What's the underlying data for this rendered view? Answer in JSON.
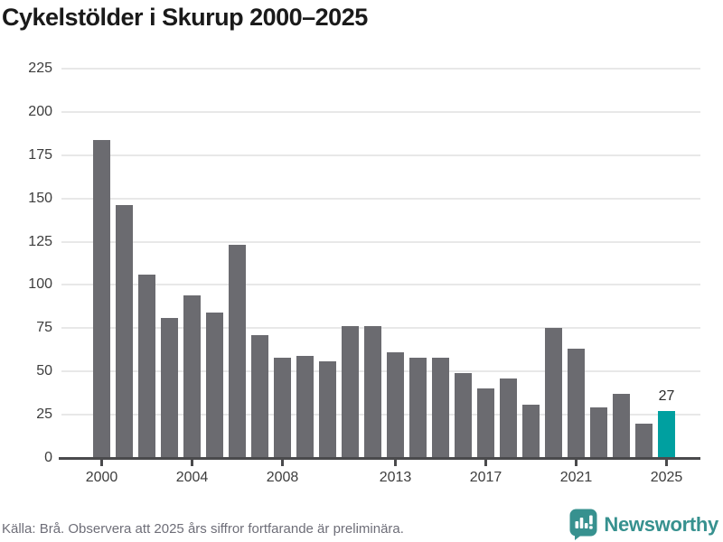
{
  "title": "Cykelstölder i Skurup 2000–2025",
  "chart_data": {
    "type": "bar",
    "title": "Cykelstölder i Skurup 2000–2025",
    "categories": [
      "2000",
      "2001",
      "2002",
      "2003",
      "2004",
      "2005",
      "2006",
      "2007",
      "2008",
      "2009",
      "2010",
      "2011",
      "2012",
      "2013",
      "2014",
      "2015",
      "2016",
      "2017",
      "2018",
      "2019",
      "2020",
      "2021",
      "2022",
      "2023",
      "2024",
      "2025"
    ],
    "values": [
      184,
      146,
      106,
      81,
      94,
      84,
      123,
      71,
      58,
      59,
      56,
      76,
      76,
      61,
      58,
      58,
      49,
      40,
      46,
      31,
      75,
      63,
      29,
      37,
      20,
      27
    ],
    "xlabel": "",
    "ylabel": "",
    "ylim": [
      0,
      225
    ],
    "y_tick_step": 25,
    "y_tick_labels": [
      "0",
      "25",
      "50",
      "75",
      "100",
      "125",
      "150",
      "175",
      "200",
      "225"
    ],
    "x_tick_labels": [
      "2000",
      "2004",
      "2008",
      "2013",
      "2017",
      "2021",
      "2025"
    ],
    "grid": "horizontal",
    "legend": "none",
    "highlighted_category": "2025",
    "annotation": {
      "text": "27",
      "category": "2025"
    },
    "bar_color": "#6b6b70",
    "highlight_color": "#00a0a0",
    "grid_color": "#e8e8e8",
    "axis_color": "#4a4a4c",
    "tick_label_color": "#3d3d3d"
  },
  "footer": {
    "source_note": "Källa: Brå. Observera att 2025 års siffror fortfarande är preliminära.",
    "brand": "Newsworthy",
    "brand_color": "#37918f"
  }
}
